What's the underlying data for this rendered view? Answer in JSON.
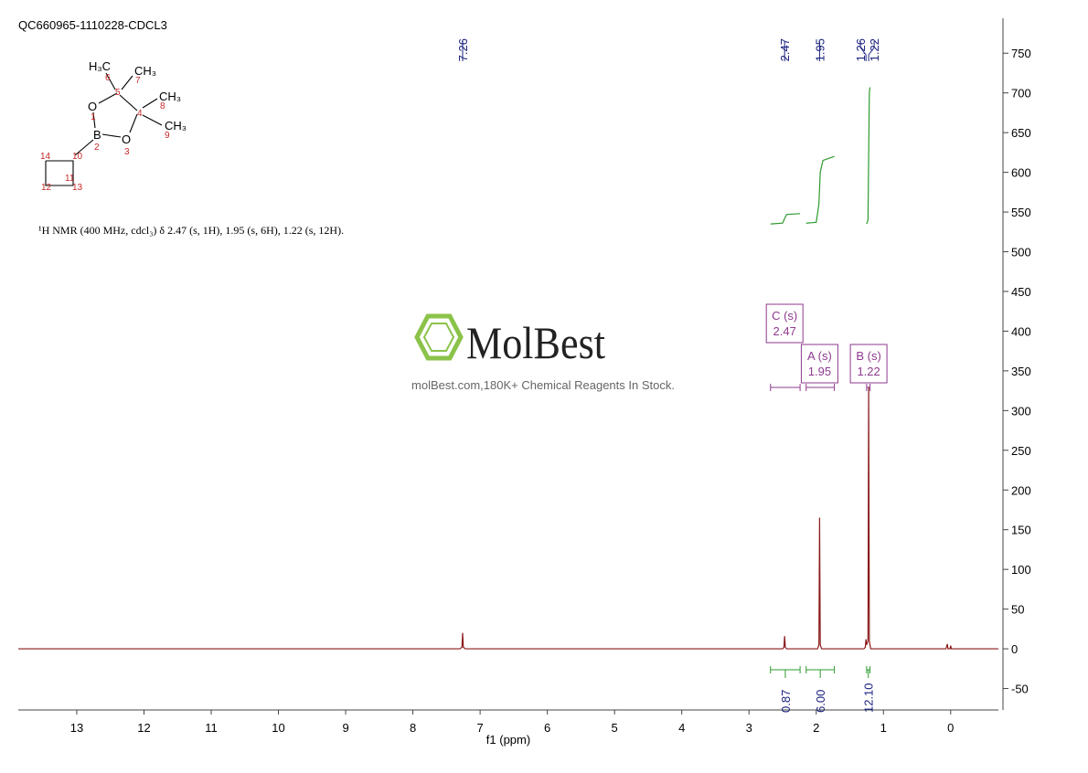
{
  "chart_data": {
    "type": "line",
    "title": "QC660965-1110228-CDCL3",
    "description": "¹H NMR (400 MHz, cdcl₃) δ 2.47 (s, 1H), 1.95 (s, 6H), 1.22 (s, 12H).",
    "structure": {
      "atoms": [
        "H₃C",
        "CH₃",
        "CH₃",
        "CH₃",
        "O",
        "B",
        "O"
      ],
      "locants": [
        "1",
        "2",
        "3",
        "4",
        "5",
        "6",
        "7",
        "8",
        "9",
        "10",
        "11",
        "12",
        "13",
        "14"
      ]
    },
    "brand": "MolBest",
    "tagline": "molBest.com,180K+ Chemical Reagents In Stock.",
    "x_label": "f1 (ppm)",
    "xlim": [
      13.87,
      -0.71
    ],
    "xticks": [
      13,
      12,
      11,
      10,
      9,
      8,
      7,
      6,
      5,
      4,
      3,
      2,
      1,
      0
    ],
    "ylim": [
      -77,
      794
    ],
    "yticks": [
      -50,
      0,
      50,
      100,
      150,
      200,
      250,
      300,
      350,
      400,
      450,
      500,
      550,
      600,
      650,
      700,
      750
    ],
    "peak_labels": [
      7.26,
      2.47,
      1.95,
      1.26,
      1.22
    ],
    "peak_color": "#1a237e",
    "series": [
      {
        "color": "#8b1a1a",
        "x": [
          13.87,
          7.3,
          7.27,
          7.26,
          7.25,
          7.22,
          2.5,
          2.48,
          2.47,
          2.46,
          2.44,
          1.98,
          1.96,
          1.95,
          1.94,
          1.92,
          1.29,
          1.27,
          1.26,
          1.25,
          1.23,
          1.22,
          1.21,
          1.19,
          0.07,
          0.05,
          0.04,
          0.01,
          0.0,
          -0.01,
          -0.71
        ],
        "values": [
          0,
          0,
          2,
          20,
          2,
          0,
          0,
          2,
          16,
          2,
          0,
          0,
          5,
          165,
          5,
          0,
          0,
          2,
          12,
          5,
          10,
          330,
          10,
          0,
          0,
          6,
          0,
          0,
          4,
          0,
          0
        ]
      },
      {
        "color": "#2e9a2e",
        "x": [
          2.68,
          2.5,
          2.47,
          2.44,
          2.24
        ],
        "values": [
          535,
          536,
          542,
          547,
          548
        ]
      },
      {
        "color": "#2e9a2e",
        "x": [
          2.15,
          2.0,
          1.96,
          1.95,
          1.94,
          1.9,
          1.73
        ],
        "values": [
          536,
          537,
          560,
          580,
          600,
          615,
          620
        ]
      },
      {
        "color": "#2e9a2e",
        "x": [
          1.25,
          1.23,
          1.22,
          1.21,
          1.2
        ],
        "values": [
          535,
          540,
          620,
          700,
          707
        ]
      }
    ],
    "multiplets": {
      "labels": [
        "C (s)",
        "A (s)",
        "B (s)"
      ],
      "shifts": [
        2.47,
        1.95,
        1.22
      ],
      "ranges": [
        [
          2.68,
          2.24
        ],
        [
          2.15,
          1.73
        ],
        [
          1.25,
          1.2
        ]
      ],
      "color": "#8e3a8e"
    },
    "integrals": {
      "values": [
        0.87,
        6,
        12.1
      ],
      "value_labels": [
        "0.87",
        "6.00",
        "12.10"
      ],
      "color": "#2e9a2e"
    }
  }
}
